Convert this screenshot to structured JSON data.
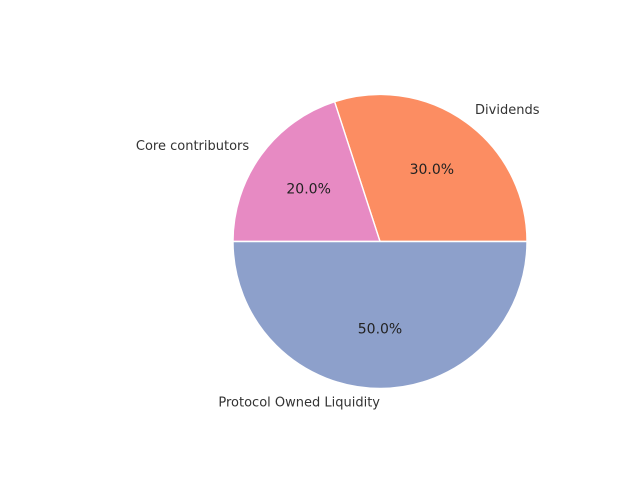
{
  "chart_data": {
    "type": "pie",
    "title": "",
    "slices": [
      {
        "label": "Dividends",
        "value": 30.0,
        "percent_label": "30.0%",
        "color": "#fc8d62"
      },
      {
        "label": "Core contributors",
        "value": 20.0,
        "percent_label": "20.0%",
        "color": "#e78ac3"
      },
      {
        "label": "Protocol Owned Liquidity",
        "value": 50.0,
        "percent_label": "50.0%",
        "color": "#8da0cb"
      }
    ],
    "start_angle_deg": 0,
    "direction": "counterclockwise",
    "legend": "none"
  }
}
